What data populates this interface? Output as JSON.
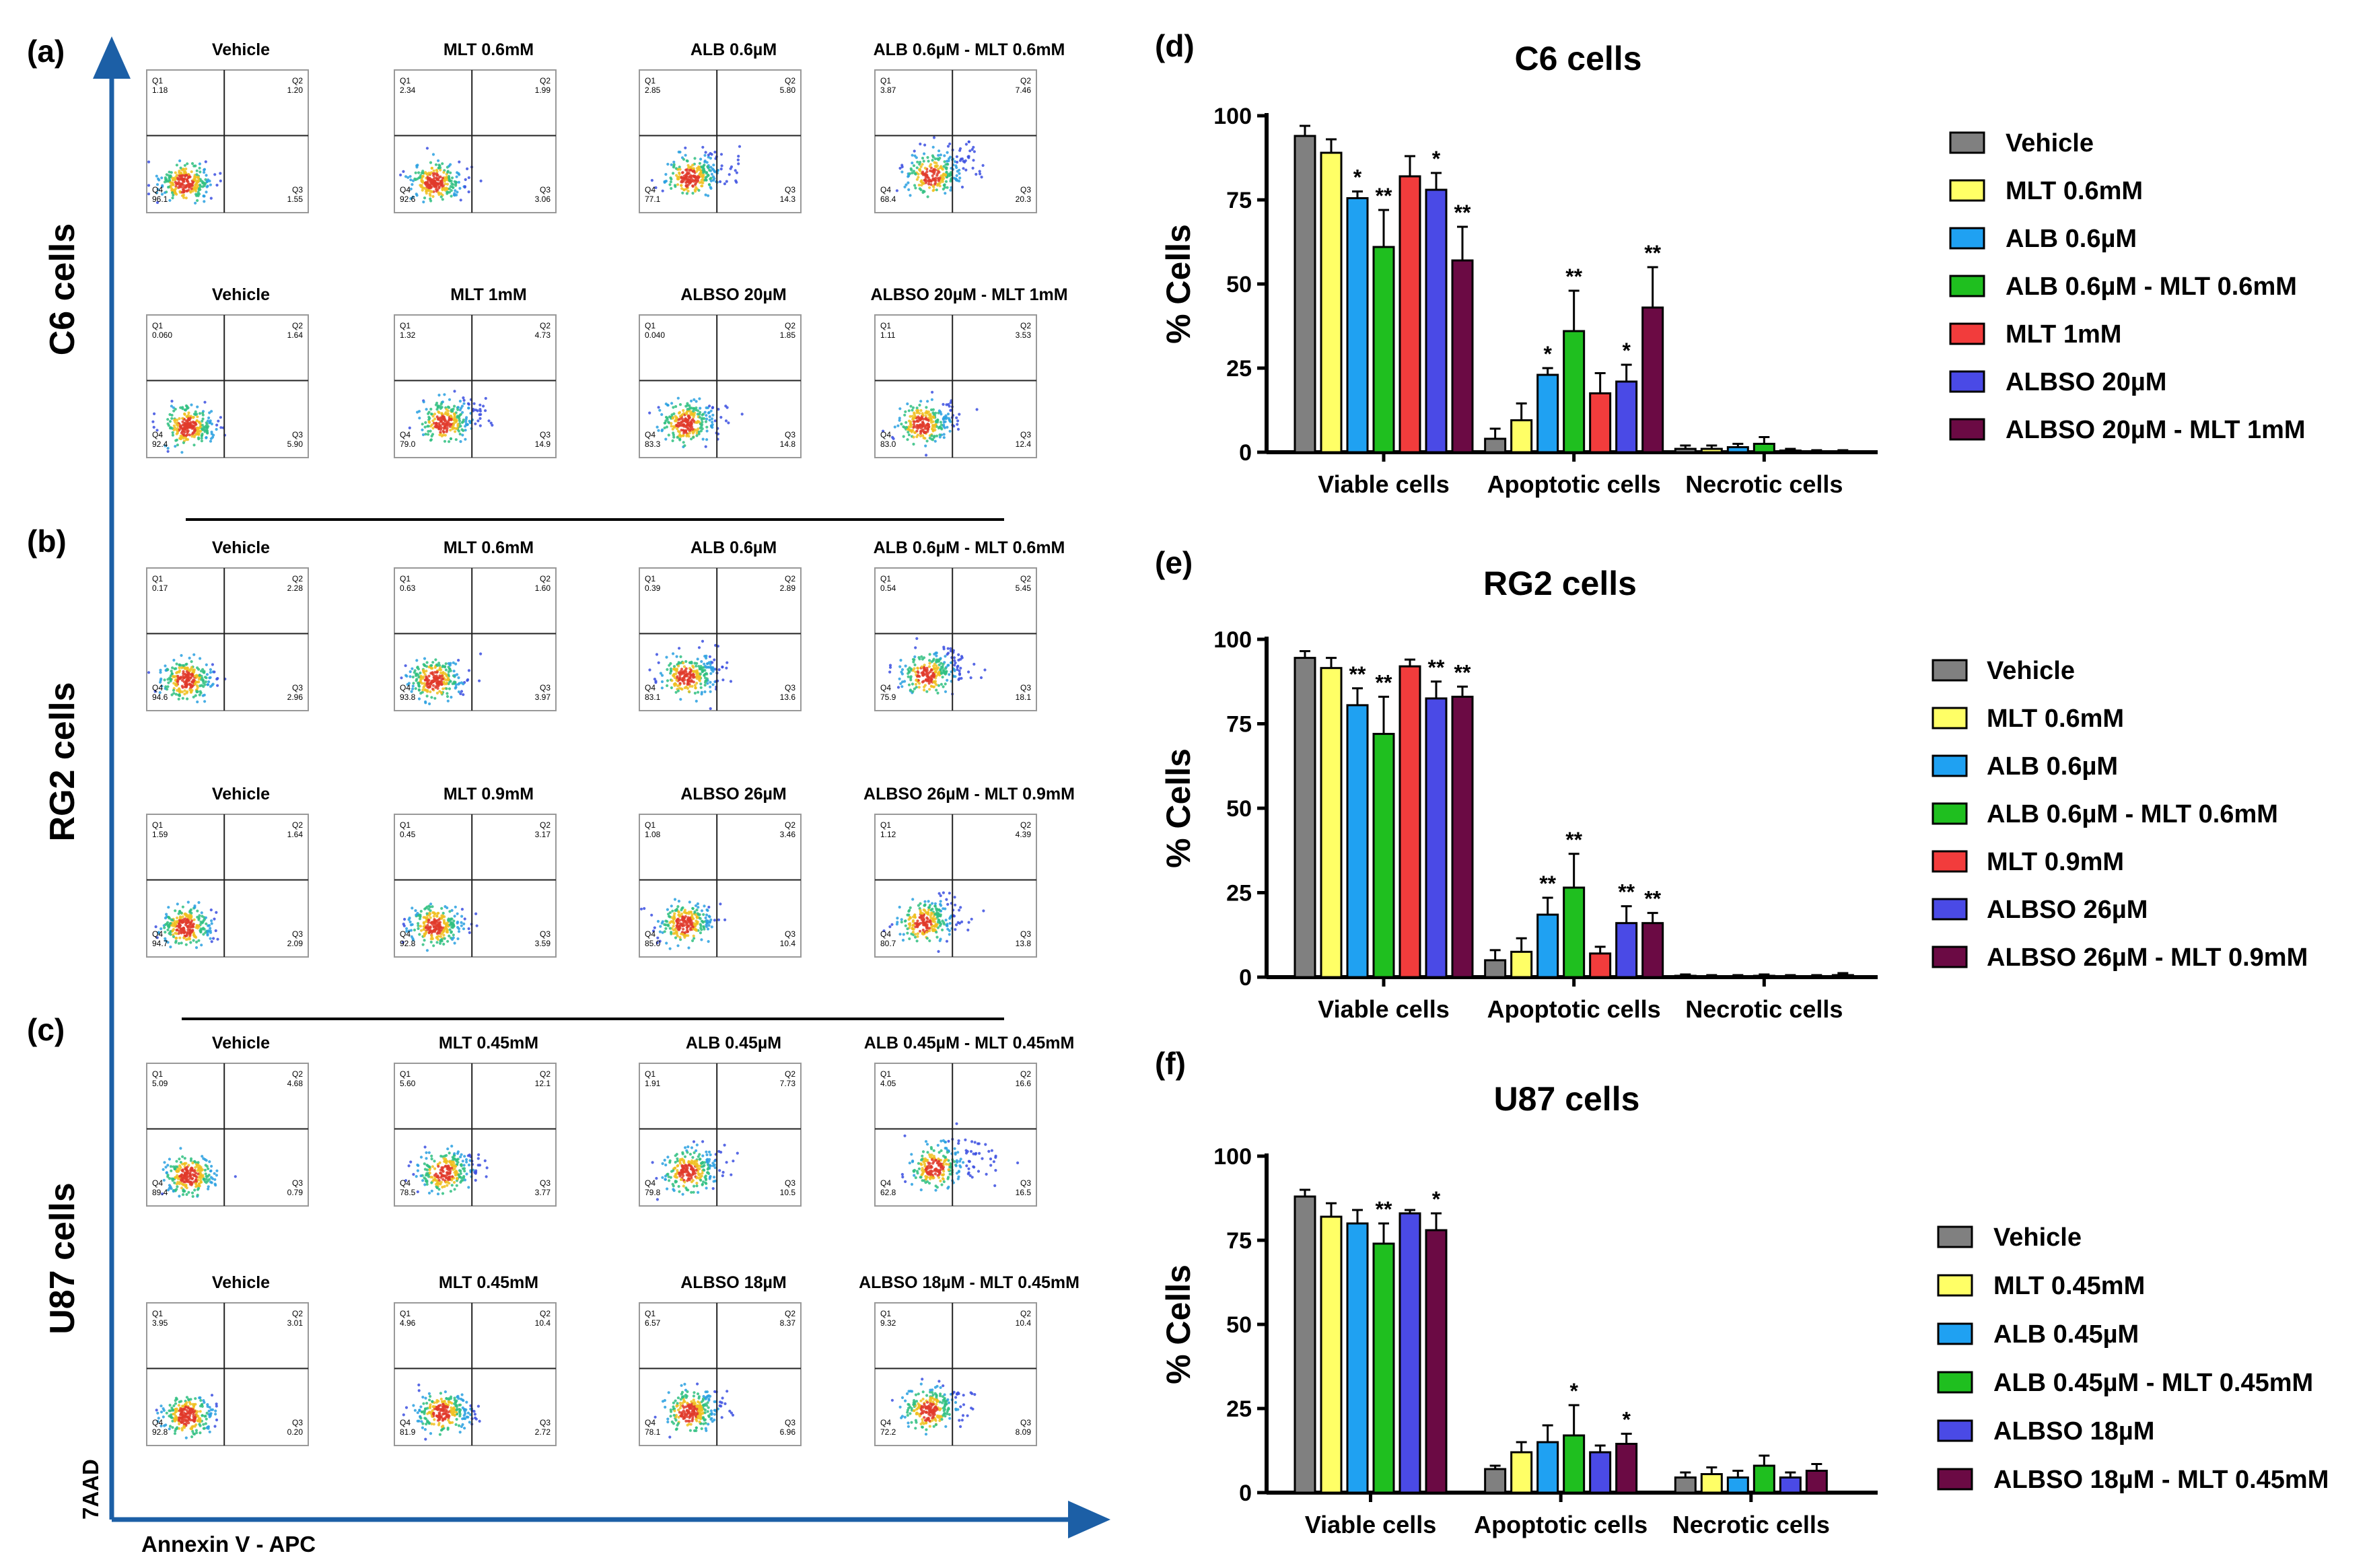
{
  "figure": {
    "panel_labels": [
      "(a)",
      "(b)",
      "(c)",
      "(d)",
      "(e)",
      "(f)"
    ],
    "axis_labels": {
      "x": "Annexin V - APC",
      "y": "7AAD"
    },
    "quadrant_names": [
      "Q1",
      "Q2",
      "Q3",
      "Q4"
    ]
  },
  "flow_groups": [
    {
      "cell_label": "C6 cells",
      "rows": [
        {
          "plots": [
            {
              "title": "Vehicle",
              "q1": "1.18",
              "q2": "1.20",
              "q3": "1.55",
              "q4": "96.1"
            },
            {
              "title": "MLT 0.6mM",
              "q1": "2.34",
              "q2": "1.99",
              "q3": "3.06",
              "q4": "92.6"
            },
            {
              "title": "ALB 0.6µM",
              "q1": "2.85",
              "q2": "5.80",
              "q3": "14.3",
              "q4": "77.1"
            },
            {
              "title": "ALB 0.6µM - MLT 0.6mM",
              "q1": "3.87",
              "q2": "7.46",
              "q3": "20.3",
              "q4": "68.4"
            }
          ]
        },
        {
          "plots": [
            {
              "title": "Vehicle",
              "q1": "0.060",
              "q2": "1.64",
              "q3": "5.90",
              "q4": "92.4"
            },
            {
              "title": "MLT 1mM",
              "q1": "1.32",
              "q2": "4.73",
              "q3": "14.9",
              "q4": "79.0"
            },
            {
              "title": "ALBSO 20µM",
              "q1": "0.040",
              "q2": "1.85",
              "q3": "14.8",
              "q4": "83.3"
            },
            {
              "title": "ALBSO 20µM - MLT 1mM",
              "q1": "1.11",
              "q2": "3.53",
              "q3": "12.4",
              "q4": "83.0"
            }
          ]
        }
      ]
    },
    {
      "cell_label": "RG2 cells",
      "rows": [
        {
          "plots": [
            {
              "title": "Vehicle",
              "q1": "0.17",
              "q2": "2.28",
              "q3": "2.96",
              "q4": "94.6"
            },
            {
              "title": "MLT 0.6mM",
              "q1": "0.63",
              "q2": "1.60",
              "q3": "3.97",
              "q4": "93.8"
            },
            {
              "title": "ALB 0.6µM",
              "q1": "0.39",
              "q2": "2.89",
              "q3": "13.6",
              "q4": "83.1"
            },
            {
              "title": "ALB 0.6µM - MLT 0.6mM",
              "q1": "0.54",
              "q2": "5.45",
              "q3": "18.1",
              "q4": "75.9"
            }
          ]
        },
        {
          "plots": [
            {
              "title": "Vehicle",
              "q1": "1.59",
              "q2": "1.64",
              "q3": "2.09",
              "q4": "94.7"
            },
            {
              "title": "MLT 0.9mM",
              "q1": "0.45",
              "q2": "3.17",
              "q3": "3.59",
              "q4": "92.8"
            },
            {
              "title": "ALBSO 26µM",
              "q1": "1.08",
              "q2": "3.46",
              "q3": "10.4",
              "q4": "85.0"
            },
            {
              "title": "ALBSO 26µM - MLT 0.9mM",
              "q1": "1.12",
              "q2": "4.39",
              "q3": "13.8",
              "q4": "80.7"
            }
          ]
        }
      ]
    },
    {
      "cell_label": "U87 cells",
      "rows": [
        {
          "plots": [
            {
              "title": "Vehicle",
              "q1": "5.09",
              "q2": "4.68",
              "q3": "0.79",
              "q4": "89.4"
            },
            {
              "title": "MLT 0.45mM",
              "q1": "5.60",
              "q2": "12.1",
              "q3": "3.77",
              "q4": "78.5"
            },
            {
              "title": "ALB 0.45µM",
              "q1": "1.91",
              "q2": "7.73",
              "q3": "10.5",
              "q4": "79.8"
            },
            {
              "title": "ALB 0.45µM - MLT 0.45mM",
              "q1": "4.05",
              "q2": "16.6",
              "q3": "16.5",
              "q4": "62.8"
            }
          ]
        },
        {
          "plots": [
            {
              "title": "Vehicle",
              "q1": "3.95",
              "q2": "3.01",
              "q3": "0.20",
              "q4": "92.8"
            },
            {
              "title": "MLT 0.45mM",
              "q1": "4.96",
              "q2": "10.4",
              "q3": "2.72",
              "q4": "81.9"
            },
            {
              "title": "ALBSO 18µM",
              "q1": "6.57",
              "q2": "8.37",
              "q3": "6.96",
              "q4": "78.1"
            },
            {
              "title": "ALBSO 18µM - MLT 0.45mM",
              "q1": "9.32",
              "q2": "10.4",
              "q3": "8.09",
              "q4": "72.2"
            }
          ]
        }
      ]
    }
  ],
  "colors": {
    "vehicle": "#808080",
    "mlt": "#ffff66",
    "alb": "#1fa1f2",
    "combo": "#1fbf1f",
    "mlt_high": "#f23c3c",
    "albso": "#4a4ae6",
    "albso_combo": "#6b0a44",
    "axis_arrow": "#1c5fa6"
  },
  "chart_data": [
    {
      "type": "bar",
      "title": "C6 cells",
      "ylabel": "% Cells",
      "ylim": [
        0,
        100
      ],
      "yticks": [
        "0",
        "25",
        "50",
        "75",
        "100"
      ],
      "categories": [
        "Viable cells",
        "Apoptotic cells",
        "Necrotic cells"
      ],
      "legend_position": "right",
      "series": [
        {
          "name": "Vehicle",
          "color": "#808080",
          "values": [
            94,
            4,
            1
          ],
          "errors": [
            3,
            3,
            1
          ],
          "sig": [
            "",
            "",
            ""
          ]
        },
        {
          "name": "MLT 0.6mM",
          "color": "#ffff66",
          "values": [
            89,
            9.5,
            1
          ],
          "errors": [
            4,
            5,
            1
          ],
          "sig": [
            "",
            "",
            ""
          ]
        },
        {
          "name": "ALB 0.6µM",
          "color": "#1fa1f2",
          "values": [
            75.5,
            23,
            1.5
          ],
          "errors": [
            2,
            2,
            1
          ],
          "sig": [
            "*",
            "*",
            ""
          ]
        },
        {
          "name": "ALB 0.6µM - MLT 0.6mM",
          "color": "#1fbf1f",
          "values": [
            61,
            36,
            2.5
          ],
          "errors": [
            11,
            12,
            2
          ],
          "sig": [
            "**",
            "**",
            ""
          ]
        },
        {
          "name": "MLT 1mM",
          "color": "#f23c3c",
          "values": [
            82,
            17.5,
            0.5
          ],
          "errors": [
            6,
            6,
            0.5
          ],
          "sig": [
            "",
            "",
            ""
          ]
        },
        {
          "name": "ALBSO 20µM",
          "color": "#4a4ae6",
          "values": [
            78,
            21,
            0.3
          ],
          "errors": [
            5,
            5,
            0.3
          ],
          "sig": [
            "*",
            "*",
            ""
          ]
        },
        {
          "name": "ALBSO 20µM - MLT 1mM",
          "color": "#6b0a44",
          "values": [
            57,
            43,
            0.3
          ],
          "errors": [
            10,
            12,
            0.3
          ],
          "sig": [
            "**",
            "**",
            ""
          ]
        }
      ]
    },
    {
      "type": "bar",
      "title": "RG2 cells",
      "ylabel": "% Cells",
      "ylim": [
        0,
        100
      ],
      "yticks": [
        "0",
        "25",
        "50",
        "75",
        "100"
      ],
      "categories": [
        "Viable cells",
        "Apoptotic cells",
        "Necrotic cells"
      ],
      "legend_position": "right",
      "series": [
        {
          "name": "Vehicle",
          "color": "#808080",
          "values": [
            94.5,
            5,
            0.4
          ],
          "errors": [
            2,
            3,
            0.4
          ],
          "sig": [
            "",
            "",
            ""
          ]
        },
        {
          "name": "MLT 0.6mM",
          "color": "#ffff66",
          "values": [
            91.5,
            7.5,
            0.3
          ],
          "errors": [
            3,
            4,
            0.3
          ],
          "sig": [
            "",
            "",
            ""
          ]
        },
        {
          "name": "ALB 0.6µM",
          "color": "#1fa1f2",
          "values": [
            80.5,
            18.5,
            0.3
          ],
          "errors": [
            5,
            5,
            0.3
          ],
          "sig": [
            "**",
            "**",
            ""
          ]
        },
        {
          "name": "ALB 0.6µM - MLT 0.6mM",
          "color": "#1fbf1f",
          "values": [
            72,
            26.5,
            0.4
          ],
          "errors": [
            11,
            10,
            0.4
          ],
          "sig": [
            "**",
            "**",
            ""
          ]
        },
        {
          "name": "MLT 0.9mM",
          "color": "#f23c3c",
          "values": [
            92,
            7,
            0.3
          ],
          "errors": [
            2,
            2,
            0.3
          ],
          "sig": [
            "",
            "",
            ""
          ]
        },
        {
          "name": "ALBSO 26µM",
          "color": "#4a4ae6",
          "values": [
            82.5,
            16,
            0.3
          ],
          "errors": [
            5,
            5,
            0.3
          ],
          "sig": [
            "**",
            "**",
            ""
          ]
        },
        {
          "name": "ALBSO 26µM - MLT 0.9mM",
          "color": "#6b0a44",
          "values": [
            83,
            16,
            0.6
          ],
          "errors": [
            3,
            3,
            0.6
          ],
          "sig": [
            "**",
            "**",
            ""
          ]
        }
      ]
    },
    {
      "type": "bar",
      "title": "U87 cells",
      "ylabel": "% Cells",
      "ylim": [
        0,
        100
      ],
      "yticks": [
        "0",
        "25",
        "50",
        "75",
        "100"
      ],
      "categories": [
        "Viable cells",
        "Apoptotic cells",
        "Necrotic cells"
      ],
      "legend_position": "right",
      "series": [
        {
          "name": "Vehicle",
          "color": "#808080",
          "values": [
            88,
            7,
            4.5
          ],
          "errors": [
            2,
            1,
            1.5
          ],
          "sig": [
            "",
            "",
            ""
          ]
        },
        {
          "name": "MLT 0.45mM",
          "color": "#ffff66",
          "values": [
            82,
            12,
            5.5
          ],
          "errors": [
            4,
            3,
            2
          ],
          "sig": [
            "",
            "",
            ""
          ]
        },
        {
          "name": "ALB 0.45µM",
          "color": "#1fa1f2",
          "values": [
            80,
            15,
            4.5
          ],
          "errors": [
            4,
            5,
            2
          ],
          "sig": [
            "",
            "",
            ""
          ]
        },
        {
          "name": "ALB 0.45µM - MLT 0.45mM",
          "color": "#1fbf1f",
          "values": [
            74,
            17,
            8
          ],
          "errors": [
            6,
            9,
            3
          ],
          "sig": [
            "**",
            "*",
            ""
          ]
        },
        {
          "name": "ALBSO 18µM",
          "color": "#4a4ae6",
          "values": [
            83,
            12,
            4.5
          ],
          "errors": [
            1,
            2,
            1.5
          ],
          "sig": [
            "",
            "",
            ""
          ]
        },
        {
          "name": "ALBSO 18µM - MLT 0.45mM",
          "color": "#6b0a44",
          "values": [
            78,
            14.5,
            6.5
          ],
          "errors": [
            5,
            3,
            2
          ],
          "sig": [
            "*",
            "*",
            ""
          ]
        }
      ]
    }
  ]
}
